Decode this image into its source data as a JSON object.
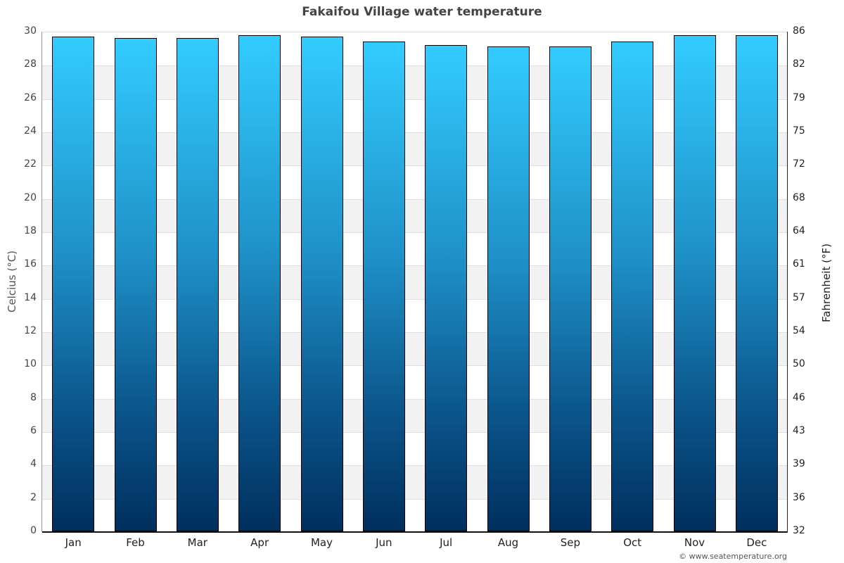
{
  "header": {
    "title": "Fakaifou Village water temperature"
  },
  "axes": {
    "left_label": "Celcius (°C)",
    "right_label": "Fahrenheit (°F)",
    "left_ticks": [
      "0",
      "2",
      "4",
      "6",
      "8",
      "10",
      "12",
      "14",
      "16",
      "18",
      "20",
      "22",
      "24",
      "26",
      "28",
      "30"
    ],
    "right_ticks": [
      "32",
      "36",
      "39",
      "43",
      "46",
      "50",
      "54",
      "57",
      "61",
      "64",
      "68",
      "72",
      "75",
      "79",
      "82",
      "86"
    ]
  },
  "footer": {
    "credit": "© www.seatemperature.org"
  },
  "colors": {
    "bar_top": "#33ccff",
    "bar_bottom": "#002f5e",
    "band": "#f2f2f2",
    "title": "#444444"
  },
  "chart_data": {
    "type": "bar",
    "title": "Fakaifou Village water temperature",
    "xlabel": "",
    "ylabel": "Celcius (°C)",
    "ylabel_right": "Fahrenheit (°F)",
    "categories": [
      "Jan",
      "Feb",
      "Mar",
      "Apr",
      "May",
      "Jun",
      "Jul",
      "Aug",
      "Sep",
      "Oct",
      "Nov",
      "Dec"
    ],
    "values": [
      29.7,
      29.6,
      29.6,
      29.8,
      29.7,
      29.4,
      29.2,
      29.1,
      29.1,
      29.4,
      29.8,
      29.8
    ],
    "ylim": [
      0,
      30
    ],
    "ylim_right": [
      32,
      86
    ],
    "grid": true,
    "legend": null
  }
}
